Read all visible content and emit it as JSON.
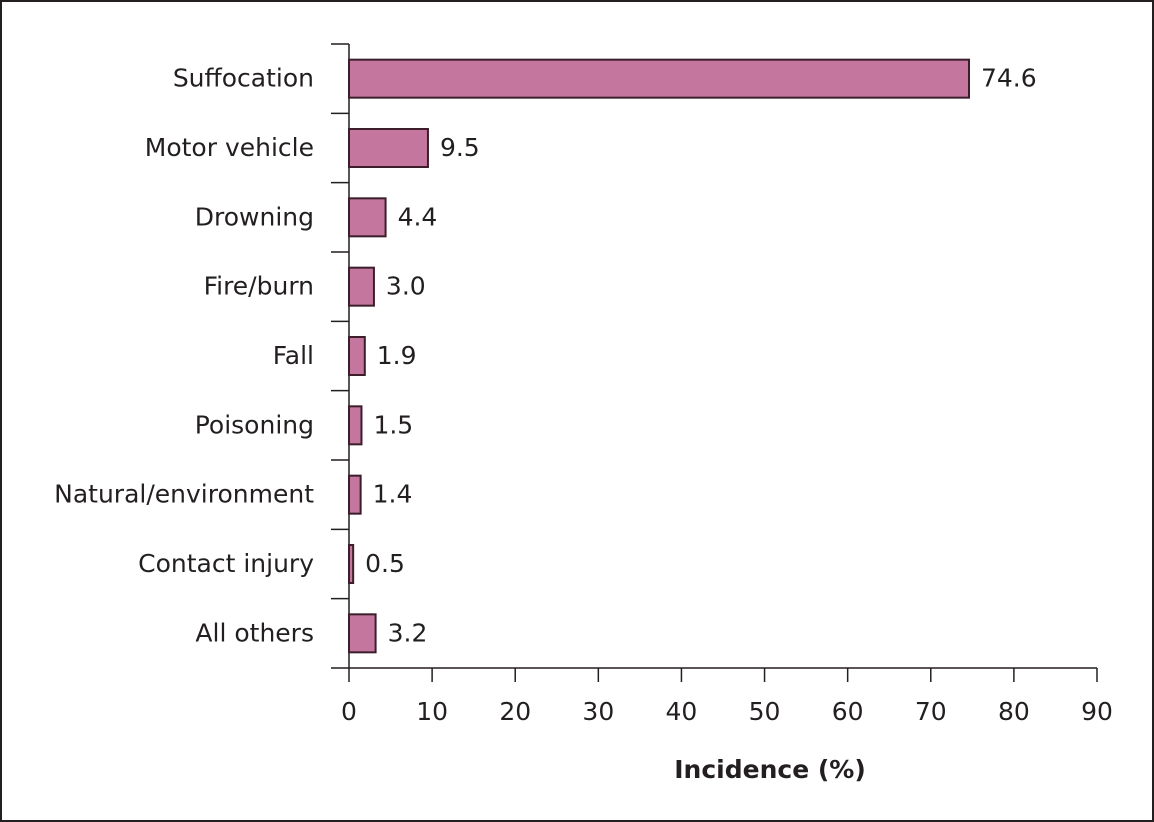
{
  "chart_data": {
    "type": "hbar",
    "categories": [
      "Suffocation",
      "Motor vehicle",
      "Drowning",
      "Fire/burn",
      "Fall",
      "Poisoning",
      "Natural/environment",
      "Contact injury",
      "All others"
    ],
    "values": [
      74.6,
      9.5,
      4.4,
      3.0,
      1.9,
      1.5,
      1.4,
      0.5,
      3.2
    ],
    "value_labels": [
      "74.6",
      "9.5",
      "4.4",
      "3.0",
      "1.9",
      "1.5",
      "1.4",
      "0.5",
      "3.2"
    ],
    "color": "#c4769e",
    "x_label": "Incidence (%)",
    "xlim": [
      0,
      90
    ],
    "xticks": [
      0,
      10,
      20,
      30,
      40,
      50,
      60,
      70,
      80,
      90
    ]
  }
}
